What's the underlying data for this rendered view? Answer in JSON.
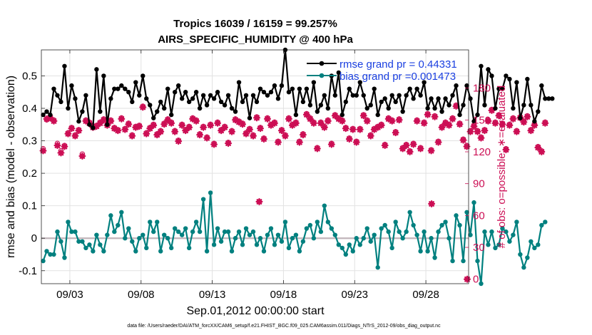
{
  "chart_data": {
    "type": "line",
    "title_line1": "Tropics 16039 / 16159 = 99.257%",
    "title_line2": "AIRS_SPECIFIC_HUMIDITY @ 400 hPa",
    "xlabel": "Sep.01,2012 00:00:00 start",
    "ylabel": "rmse and bias (model - observation)",
    "y2label": "# of obs: o=possible; ∗=evaluated",
    "footnote": "data file: /Users/raeder/DAI/ATM_forcXX/CAM6_setup/f.e21.FHIST_BGC.f09_025.CAM6assim.011/Diags_NTrS_2012-09/obs_diag_output.nc",
    "xlim": [
      1.0,
      31.0
    ],
    "ylim": [
      -0.14,
      0.58
    ],
    "y2lim": [
      -4.2,
      216.0
    ],
    "x_ticks": [
      3,
      8,
      13,
      18,
      23,
      28
    ],
    "x_ticklabels": [
      "09/03",
      "09/08",
      "09/13",
      "09/18",
      "09/23",
      "09/28"
    ],
    "y_ticks": [
      -0.1,
      0,
      0.1,
      0.2,
      0.3,
      0.4,
      0.5
    ],
    "y_ticklabels": [
      "-0.1",
      "0",
      "0.1",
      "0.2",
      "0.3",
      "0.4",
      "0.5"
    ],
    "y2_ticks": [
      0,
      30,
      60,
      90,
      120,
      150,
      180
    ],
    "y2_ticklabels": [
      "0",
      "30",
      "60",
      "90",
      "120",
      "150",
      "180"
    ],
    "grid": true,
    "zero_line": 0,
    "legend": {
      "position": "top-right",
      "entries": [
        "rmse grand pr = 0.44331",
        "bias grand pr =0.001473"
      ]
    },
    "colors": {
      "rmse": "#000000",
      "bias": "#00807f",
      "nobs": "#cc0e54",
      "zero": "#c0b4ba",
      "grid": "#e2e2e2"
    },
    "start_x": 1.125,
    "x_step": 0.25,
    "series": [
      {
        "name": "rmse",
        "axis": "left",
        "values": [
          0.38,
          0.39,
          0.38,
          0.46,
          0.44,
          0.42,
          0.53,
          0.4,
          0.47,
          0.43,
          0.36,
          0.39,
          0.44,
          0.35,
          0.34,
          0.52,
          0.39,
          0.5,
          0.35,
          0.43,
          0.46,
          0.46,
          0.47,
          0.46,
          0.45,
          0.42,
          0.48,
          0.44,
          0.5,
          0.43,
          0.41,
          0.37,
          0.39,
          0.42,
          0.4,
          0.46,
          0.38,
          0.45,
          0.47,
          0.43,
          0.45,
          0.42,
          0.43,
          0.45,
          0.4,
          0.44,
          0.41,
          0.44,
          0.43,
          0.45,
          0.42,
          0.41,
          0.44,
          0.4,
          0.39,
          0.48,
          0.42,
          0.44,
          0.37,
          0.44,
          0.42,
          0.46,
          0.45,
          0.44,
          0.45,
          0.47,
          0.43,
          0.47,
          0.58,
          0.45,
          0.46,
          0.38,
          0.46,
          0.42,
          0.46,
          0.41,
          0.48,
          0.39,
          0.41,
          0.44,
          0.4,
          0.5,
          0.44,
          0.51,
          0.38,
          0.42,
          0.46,
          0.44,
          0.44,
          0.48,
          0.44,
          0.4,
          0.41,
          0.46,
          0.38,
          0.42,
          0.43,
          0.4,
          0.44,
          0.42,
          0.44,
          0.39,
          0.44,
          0.46,
          0.43,
          0.46,
          0.44,
          0.48,
          0.4,
          0.43,
          0.4,
          0.43,
          0.39,
          0.43,
          0.41,
          0.44,
          0.47,
          0.38,
          0.41,
          0.47,
          0.43,
          0.36,
          0.38,
          0.53,
          0.41,
          0.52,
          0.5,
          0.4,
          0.46,
          0.46,
          0.5,
          0.49,
          0.4,
          0.48,
          0.37,
          0.41,
          0.49,
          0.41,
          0.36,
          0.39,
          0.47,
          0.43,
          0.43,
          0.43
        ]
      },
      {
        "name": "bias",
        "axis": "left",
        "values": [
          -0.07,
          -0.04,
          -0.05,
          -0.05,
          0.02,
          -0.01,
          -0.06,
          0.05,
          0.02,
          0.02,
          -0.01,
          -0.01,
          -0.03,
          -0.02,
          -0.04,
          0.01,
          -0.02,
          -0.04,
          0.01,
          0.07,
          0.02,
          0.04,
          0.08,
          0.0,
          0.03,
          -0.01,
          -0.04,
          0.0,
          0.01,
          -0.03,
          0.05,
          0.02,
          0.05,
          -0.04,
          0.01,
          0.0,
          -0.03,
          0.03,
          0.02,
          0.01,
          0.03,
          -0.03,
          0.02,
          0.05,
          0.02,
          0.12,
          -0.04,
          0.14,
          -0.02,
          0.03,
          -0.01,
          0.02,
          0.02,
          -0.04,
          0.0,
          0.02,
          -0.02,
          0.03,
          0.01,
          0.02,
          -0.02,
          0.0,
          -0.04,
          0.01,
          0.03,
          -0.02,
          0.01,
          -0.01,
          0.05,
          -0.03,
          0.0,
          0.01,
          -0.04,
          -0.01,
          0.03,
          0.04,
          0.0,
          0.05,
          0.02,
          0.1,
          0.05,
          0.03,
          0.01,
          -0.02,
          -0.03,
          -0.05,
          -0.02,
          -0.04,
          0.0,
          -0.02,
          0.0,
          0.03,
          -0.01,
          0.01,
          -0.09,
          0.03,
          0.04,
          0.02,
          -0.03,
          0.05,
          0.02,
          0.0,
          0.02,
          0.08,
          0.04,
          0.01,
          -0.04,
          0.02,
          -0.04,
          0.0,
          -0.06,
          0.02,
          0.04,
          0.05,
          0.0,
          -0.07,
          0.07,
          0.04,
          -0.07,
          0.08,
          0.01,
          0.11,
          -0.07,
          -0.14,
          0.02,
          -0.02,
          0.02,
          -0.03,
          -0.02,
          0.03,
          0.02,
          -0.01,
          0.01,
          0.05,
          -0.05,
          -0.09,
          -0.06,
          -0.01,
          -0.03,
          -0.02,
          0.04,
          0.05
        ]
      },
      {
        "name": "obs possible",
        "axis": "right",
        "values": [
          123,
          150,
          153,
          150,
          128,
          121,
          126,
          138,
          143,
          136,
          141,
          118,
          150,
          148,
          144,
          145,
          148,
          151,
          146,
          150,
          143,
          141,
          152,
          142,
          147,
          136,
          144,
          145,
          163,
          138,
          143,
          146,
          137,
          140,
          147,
          151,
          148,
          140,
          131,
          146,
          141,
          144,
          152,
          150,
          137,
          144,
          134,
          146,
          128,
          148,
          141,
          144,
          129,
          140,
          151,
          149,
          147,
          138,
          142,
          136,
          153,
          143,
          133,
          152,
          146,
          148,
          130,
          141,
          136,
          152,
          146,
          148,
          130,
          137,
          156,
          152,
          148,
          124,
          148,
          144,
          150,
          128,
          155,
          152,
          150,
          143,
          133,
          142,
          130,
          142,
          155,
          150,
          136,
          142,
          144,
          146,
          127,
          152,
          150,
          139,
          151,
          124,
          127,
          121,
          128,
          150,
          124,
          148,
          156,
          122,
          154,
          130,
          144,
          148,
          146,
          152,
          164,
          147,
          132,
          126,
          140,
          145,
          140,
          134,
          141,
          150,
          160,
          148,
          155,
          147,
          123,
          146,
          152,
          140,
          153,
          149,
          154,
          141,
          146,
          125,
          121,
          148
        ]
      },
      {
        "name": "obs evaluated",
        "axis": "right",
        "values": [
          121,
          151,
          152,
          149,
          126,
          119,
          125,
          137,
          142,
          135,
          140,
          116,
          149,
          147,
          143,
          144,
          147,
          150,
          145,
          149,
          142,
          140,
          151,
          141,
          146,
          135,
          143,
          144,
          162,
          137,
          142,
          145,
          136,
          139,
          146,
          150,
          147,
          139,
          130,
          145,
          140,
          143,
          151,
          149,
          136,
          143,
          133,
          145,
          127,
          147,
          140,
          143,
          128,
          139,
          150,
          148,
          146,
          137,
          141,
          135,
          152,
          142,
          132,
          151,
          145,
          147,
          129,
          140,
          135,
          151,
          145,
          147,
          129,
          136,
          155,
          151,
          147,
          123,
          147,
          143,
          149,
          127,
          154,
          151,
          149,
          142,
          132,
          141,
          129,
          141,
          154,
          149,
          135,
          141,
          143,
          145,
          126,
          151,
          149,
          138,
          150,
          123,
          126,
          120,
          127,
          149,
          123,
          147,
          155,
          121,
          153,
          129,
          143,
          147,
          145,
          151,
          163,
          146,
          131,
          125,
          139,
          144,
          139,
          133,
          140,
          149,
          159,
          147,
          154,
          146,
          122,
          145,
          151,
          139,
          152,
          148,
          153,
          140,
          145,
          124,
          120,
          147
        ]
      },
      {
        "name": "obs evaluated outliers",
        "axis": "right",
        "values": [
          {
            "x": 16.3,
            "y": 73
          },
          {
            "x": 28.4,
            "y": 71
          },
          {
            "x": 30.9,
            "y": 0
          }
        ]
      }
    ]
  }
}
